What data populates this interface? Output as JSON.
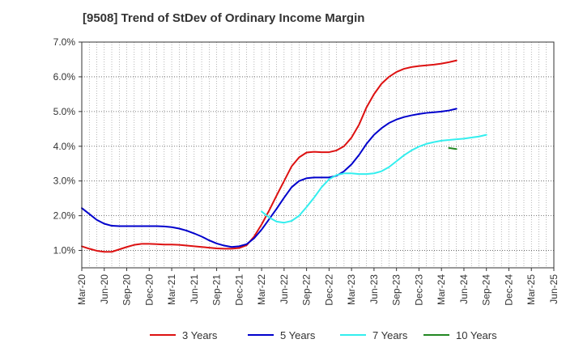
{
  "chart_data": {
    "type": "line",
    "title": "[9508]  Trend of StDev of Ordinary Income Margin",
    "xlabel": "",
    "ylabel": "",
    "ylim": [
      0.5,
      7.0
    ],
    "yticks": [
      1.0,
      2.0,
      3.0,
      4.0,
      5.0,
      6.0,
      7.0
    ],
    "ytick_labels": [
      "1.0%",
      "2.0%",
      "3.0%",
      "4.0%",
      "5.0%",
      "6.0%",
      "7.0%"
    ],
    "x_tick_labels": [
      "Mar-20",
      "Jun-20",
      "Sep-20",
      "Dec-20",
      "Mar-21",
      "Jun-21",
      "Sep-21",
      "Dec-21",
      "Mar-22",
      "Jun-22",
      "Sep-22",
      "Dec-22",
      "Mar-23",
      "Jun-23",
      "Sep-23",
      "Dec-23",
      "Mar-24",
      "Jun-24",
      "Sep-24",
      "Dec-24",
      "Mar-25",
      "Jun-25"
    ],
    "grid": true,
    "legend_position": "bottom",
    "series": [
      {
        "name": "3 Years",
        "color": "#dd1111",
        "start_index": 0,
        "values": [
          1.12,
          1.05,
          0.99,
          0.96,
          0.96,
          1.03,
          1.1,
          1.16,
          1.19,
          1.19,
          1.18,
          1.17,
          1.17,
          1.16,
          1.14,
          1.12,
          1.1,
          1.08,
          1.06,
          1.05,
          1.05,
          1.07,
          1.15,
          1.4,
          1.75,
          2.15,
          2.58,
          3.0,
          3.42,
          3.68,
          3.82,
          3.84,
          3.83,
          3.83,
          3.88,
          4.0,
          4.25,
          4.62,
          5.12,
          5.5,
          5.8,
          6.0,
          6.14,
          6.23,
          6.28,
          6.31,
          6.33,
          6.35,
          6.38,
          6.42,
          6.47
        ]
      },
      {
        "name": "5 Years",
        "color": "#0000cc",
        "start_index": 0,
        "values": [
          2.22,
          2.05,
          1.88,
          1.77,
          1.71,
          1.7,
          1.7,
          1.7,
          1.7,
          1.7,
          1.7,
          1.69,
          1.67,
          1.63,
          1.57,
          1.49,
          1.4,
          1.29,
          1.2,
          1.14,
          1.1,
          1.12,
          1.18,
          1.35,
          1.6,
          1.9,
          2.2,
          2.52,
          2.82,
          3.0,
          3.08,
          3.1,
          3.1,
          3.1,
          3.15,
          3.28,
          3.48,
          3.75,
          4.07,
          4.33,
          4.52,
          4.67,
          4.77,
          4.84,
          4.89,
          4.93,
          4.96,
          4.98,
          5.0,
          5.03,
          5.08
        ]
      },
      {
        "name": "7 Years",
        "color": "#33eeee",
        "start_index": 24,
        "values": [
          2.12,
          1.95,
          1.83,
          1.8,
          1.85,
          2.0,
          2.25,
          2.52,
          2.82,
          3.05,
          3.17,
          3.22,
          3.22,
          3.2,
          3.2,
          3.22,
          3.28,
          3.4,
          3.57,
          3.74,
          3.88,
          3.99,
          4.07,
          4.12,
          4.16,
          4.18,
          4.2,
          4.22,
          4.25,
          4.28,
          4.33
        ]
      },
      {
        "name": "10 Years",
        "color": "#228822",
        "start_index": 49,
        "values": [
          3.95,
          3.92
        ]
      }
    ]
  }
}
